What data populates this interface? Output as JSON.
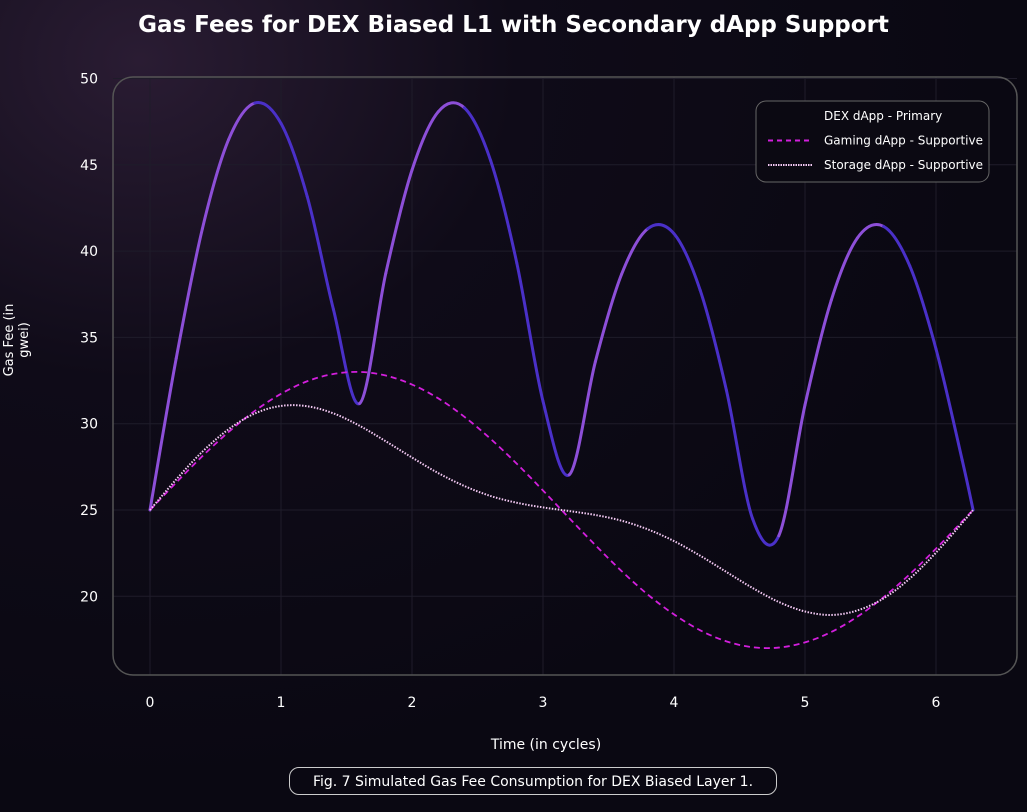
{
  "chart_data": {
    "type": "line",
    "title": "Gas Fees for DEX Biased L1 with Secondary dApp Support",
    "xlabel": "Time (in cycles)",
    "ylabel": "Gas Fee (in gwei)",
    "xlim": [
      0,
      6.2832
    ],
    "ylim": [
      15,
      50
    ],
    "xticks": [
      "0",
      "1",
      "2",
      "3",
      "4",
      "5",
      "6"
    ],
    "yticks": [
      "20",
      "25",
      "30",
      "35",
      "40",
      "45",
      "50"
    ],
    "grid": true,
    "legend_position": "top-right",
    "x": [
      0,
      0.2,
      0.4,
      0.6,
      0.8,
      1.0,
      1.2,
      1.4,
      1.6,
      1.8,
      2.0,
      2.2,
      2.4,
      2.6,
      2.8,
      3.0,
      3.2,
      3.4,
      3.6,
      3.8,
      4.0,
      4.2,
      4.4,
      4.6,
      4.8,
      5.0,
      5.2,
      5.4,
      5.6,
      5.8,
      6.0,
      6.2,
      6.2832
    ],
    "series": [
      {
        "name": "DEX dApp - Primary",
        "style": "solid",
        "color": "#6a3fd8",
        "values": [
          25,
          33.78,
          41.3,
          46.46,
          48.58,
          47.4,
          43.17,
          36.63,
          31.17,
          38.72,
          44.69,
          48.07,
          48.3,
          45.25,
          39.31,
          31.3,
          27.04,
          33.6,
          38.66,
          41.3,
          41.01,
          37.73,
          31.94,
          24.49,
          23.51,
          31.09,
          37.14,
          40.76,
          41.43,
          39.14,
          34.33,
          27.89,
          25
        ]
      },
      {
        "name": "Gaming dApp - Supportive",
        "style": "dashed",
        "color": "#d21fdc",
        "values": [
          25,
          26.59,
          28.12,
          29.52,
          30.74,
          31.73,
          32.46,
          32.88,
          33.0,
          32.79,
          32.27,
          31.47,
          30.4,
          29.12,
          27.68,
          26.13,
          24.53,
          22.96,
          21.46,
          20.1,
          18.95,
          18.03,
          17.39,
          17.05,
          17.03,
          17.33,
          17.93,
          18.82,
          19.95,
          21.28,
          22.76,
          24.34,
          25
        ]
      },
      {
        "name": "Storage dApp - Supportive",
        "style": "dotted",
        "color": "#f2c8f2",
        "values": [
          25,
          26.77,
          28.38,
          29.68,
          30.59,
          31.03,
          31.01,
          30.6,
          29.88,
          28.98,
          28.04,
          27.14,
          26.39,
          25.81,
          25.42,
          25.15,
          24.94,
          24.71,
          24.38,
          23.88,
          23.2,
          22.35,
          21.41,
          20.48,
          19.67,
          19.12,
          18.92,
          19.18,
          19.88,
          21.03,
          22.53,
          24.25,
          25
        ]
      }
    ],
    "caption": "Fig. 7 Simulated Gas Fee Consumption for DEX Biased Layer 1."
  }
}
